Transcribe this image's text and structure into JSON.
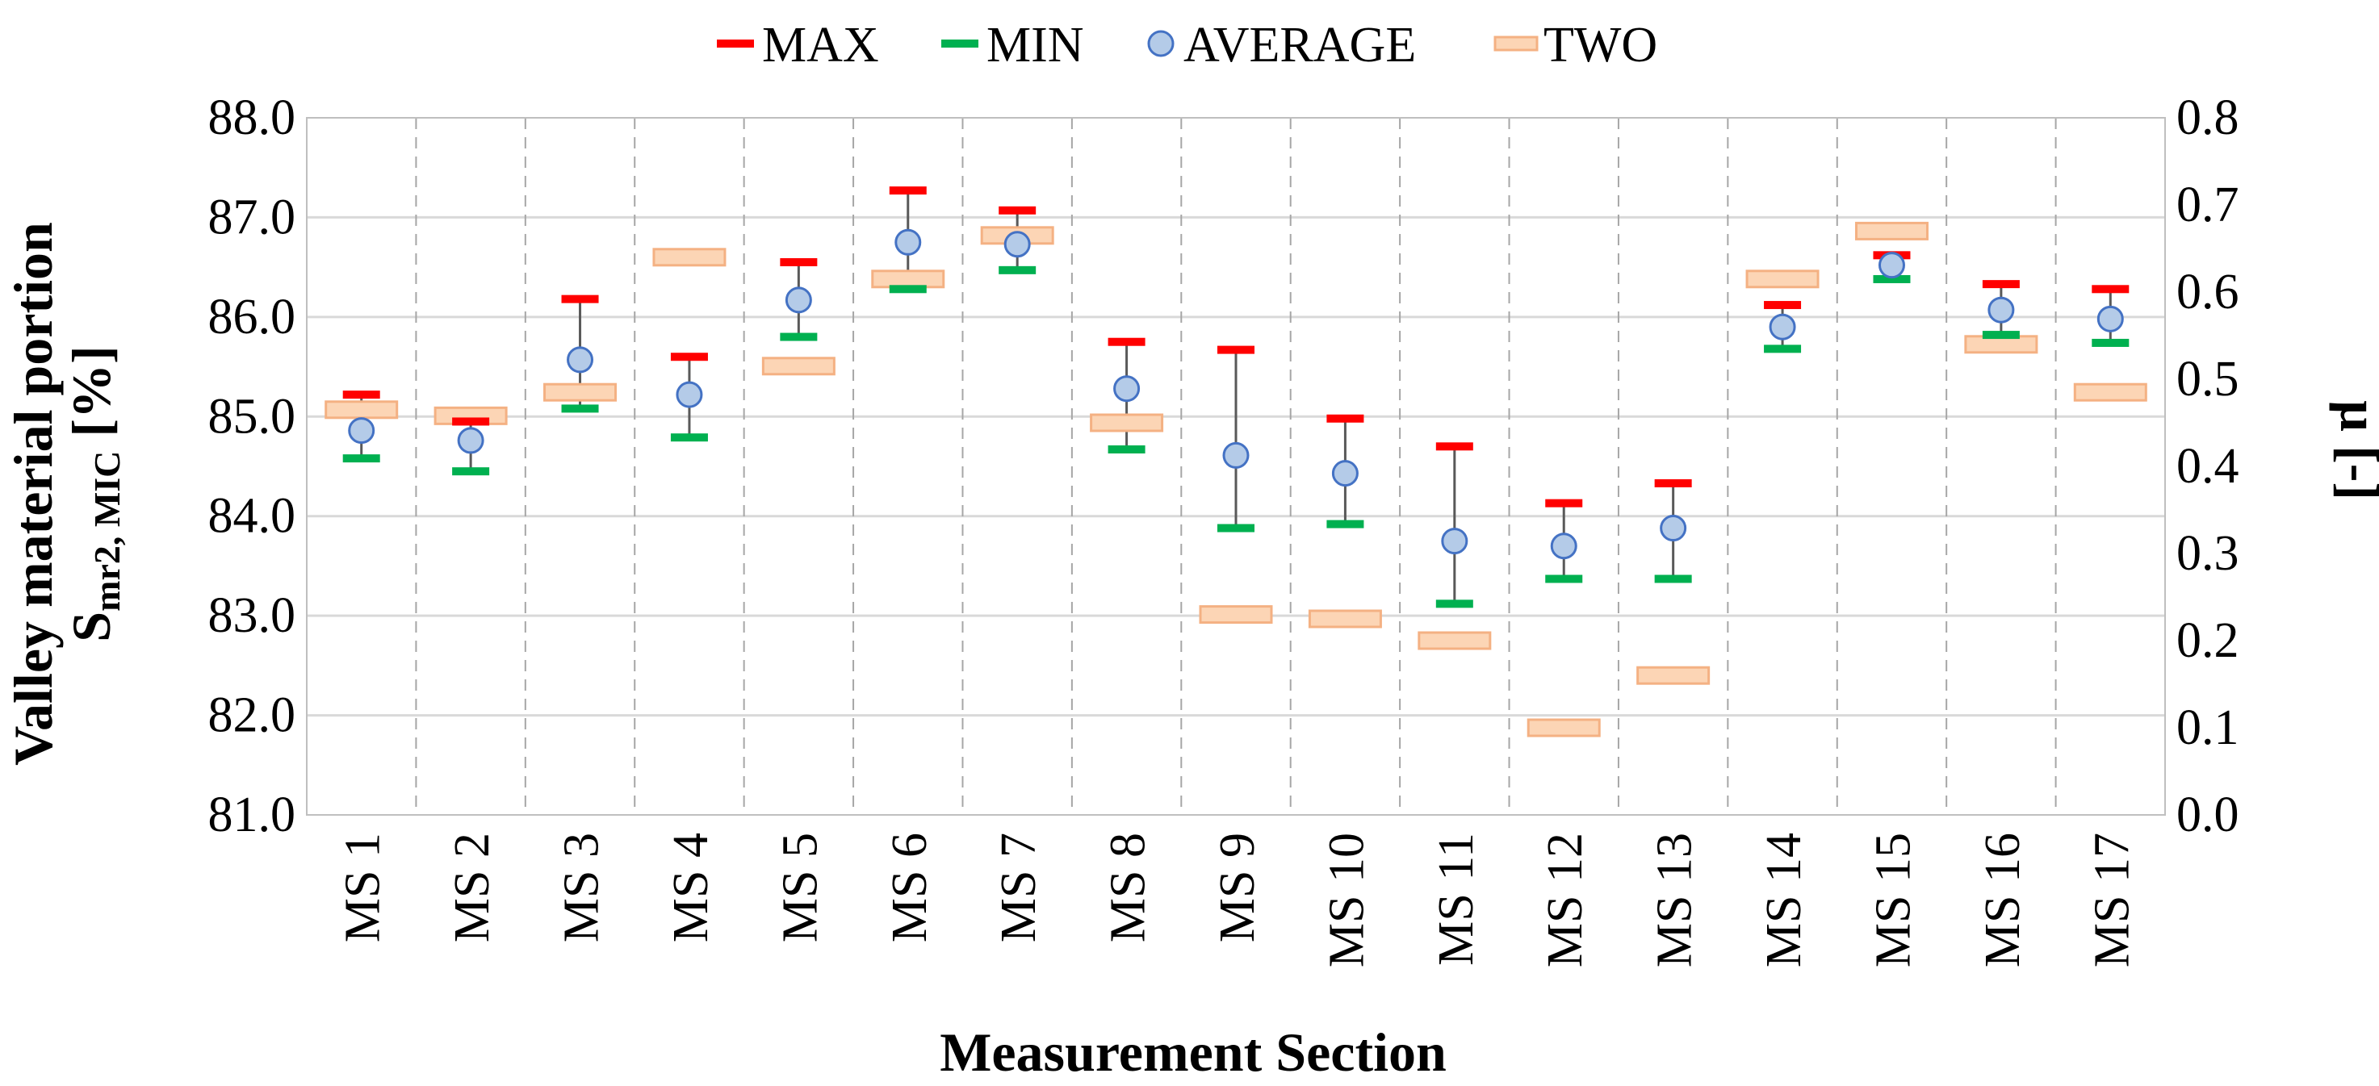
{
  "chart_data": {
    "type": "scatter",
    "title": "",
    "xlabel": "Measurement Section",
    "ylabel": "Valley material portion",
    "ylabel_symbol": "S",
    "ylabel_subscript": "mr2, MIC",
    "ylabel_unit": " [%]",
    "y2label": "µ [-]",
    "ylim": [
      81.0,
      88.0
    ],
    "y2lim": [
      0.0,
      0.8
    ],
    "yticks": [
      "81.0",
      "82.0",
      "83.0",
      "84.0",
      "85.0",
      "86.0",
      "87.0",
      "88.0"
    ],
    "y2ticks": [
      "0.0",
      "0.1",
      "0.2",
      "0.3",
      "0.4",
      "0.5",
      "0.6",
      "0.7",
      "0.8"
    ],
    "categories": [
      "MS 1",
      "MS 2",
      "MS 3",
      "MS 4",
      "MS 5",
      "MS 6",
      "MS 7",
      "MS 8",
      "MS 9",
      "MS 10",
      "MS 11",
      "MS 12",
      "MS 13",
      "MS 14",
      "MS 15",
      "MS 16",
      "MS 17"
    ],
    "grid": true,
    "legend_position": "top",
    "series": [
      {
        "name": "MAX",
        "axis": "left",
        "color": "#ff0000",
        "values": [
          85.22,
          84.95,
          86.18,
          85.6,
          86.55,
          87.27,
          87.07,
          85.75,
          85.67,
          84.98,
          84.7,
          84.13,
          84.33,
          86.12,
          86.62,
          86.33,
          86.28
        ]
      },
      {
        "name": "MIN",
        "axis": "left",
        "color": "#00b050",
        "values": [
          84.58,
          84.45,
          85.08,
          84.79,
          85.8,
          86.28,
          86.47,
          84.67,
          83.88,
          83.92,
          83.12,
          83.37,
          83.37,
          85.68,
          86.38,
          85.82,
          85.74
        ]
      },
      {
        "name": "AVERAGE",
        "axis": "left",
        "color": "#b4cbe8",
        "values": [
          84.86,
          84.76,
          85.57,
          85.22,
          86.17,
          86.75,
          86.73,
          85.28,
          84.61,
          84.43,
          83.75,
          83.7,
          83.88,
          85.9,
          86.52,
          86.07,
          85.98
        ]
      },
      {
        "name": "TWO",
        "axis": "right",
        "color": "#fcd5b5",
        "values": [
          0.465,
          0.458,
          0.485,
          0.64,
          0.515,
          0.615,
          0.665,
          0.45,
          0.23,
          0.225,
          0.2,
          0.1,
          0.16,
          0.615,
          0.67,
          0.54,
          0.485
        ]
      }
    ]
  }
}
